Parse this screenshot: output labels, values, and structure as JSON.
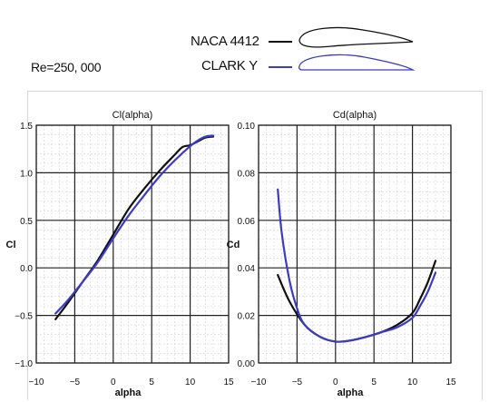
{
  "header": {
    "reynolds_label": "Re=250,  000"
  },
  "legend": [
    {
      "name": "NACA 4412",
      "color": "#111111",
      "icon": "naca-4412-airfoil-icon"
    },
    {
      "name": "CLARK  Y",
      "color": "#3b3bc4",
      "icon": "clark-y-airfoil-icon"
    }
  ],
  "chart_data": [
    {
      "type": "line",
      "title": "Cl(alpha)",
      "xlabel": "alpha",
      "ylabel": "Cl",
      "xlim": [
        -10,
        15
      ],
      "ylim": [
        -1.0,
        1.5
      ],
      "xticks": [
        "−10",
        "−5",
        "0",
        "5",
        "10",
        "15"
      ],
      "yticks": [
        "−1.0",
        "−0.5",
        "0.0",
        "0.5",
        "1.0",
        "1.5"
      ],
      "grid": true,
      "series": [
        {
          "name": "NACA 4412",
          "color": "#111111",
          "x": [
            -7.5,
            -6,
            -4,
            -2,
            0,
            2,
            4,
            6,
            8,
            9,
            10,
            11,
            12,
            13
          ],
          "y": [
            -0.54,
            -0.38,
            -0.15,
            0.08,
            0.35,
            0.62,
            0.83,
            1.02,
            1.19,
            1.27,
            1.29,
            1.33,
            1.37,
            1.38
          ]
        },
        {
          "name": "CLARK  Y",
          "color": "#3b3bc4",
          "x": [
            -7.5,
            -6,
            -4,
            -2,
            0,
            2,
            4,
            6,
            8,
            10,
            11,
            12,
            13
          ],
          "y": [
            -0.48,
            -0.35,
            -0.15,
            0.06,
            0.31,
            0.55,
            0.76,
            0.96,
            1.13,
            1.28,
            1.34,
            1.38,
            1.39
          ]
        }
      ]
    },
    {
      "type": "line",
      "title": "Cd(alpha)",
      "xlabel": "alpha",
      "ylabel": "Cd",
      "xlim": [
        -10,
        15
      ],
      "ylim": [
        0.0,
        0.1
      ],
      "xticks": [
        "−10",
        "−5",
        "0",
        "5",
        "10",
        "15"
      ],
      "yticks": [
        "0.00",
        "0.02",
        "0.04",
        "0.06",
        "0.08",
        "0.10"
      ],
      "grid": true,
      "series": [
        {
          "name": "NACA 4412",
          "color": "#111111",
          "x": [
            -7.5,
            -6,
            -4,
            -2,
            0,
            2,
            4,
            6,
            8,
            10,
            11,
            12,
            13
          ],
          "y": [
            0.037,
            0.026,
            0.016,
            0.011,
            0.009,
            0.0095,
            0.011,
            0.013,
            0.016,
            0.021,
            0.027,
            0.034,
            0.043
          ]
        },
        {
          "name": "CLARK  Y",
          "color": "#3b3bc4",
          "x": [
            -7.5,
            -7,
            -6,
            -5,
            -4,
            -2,
            0,
            2,
            4,
            6,
            8,
            10,
            11,
            12,
            13
          ],
          "y": [
            0.073,
            0.055,
            0.035,
            0.023,
            0.016,
            0.011,
            0.009,
            0.0095,
            0.011,
            0.013,
            0.015,
            0.019,
            0.024,
            0.03,
            0.038
          ]
        }
      ]
    }
  ]
}
